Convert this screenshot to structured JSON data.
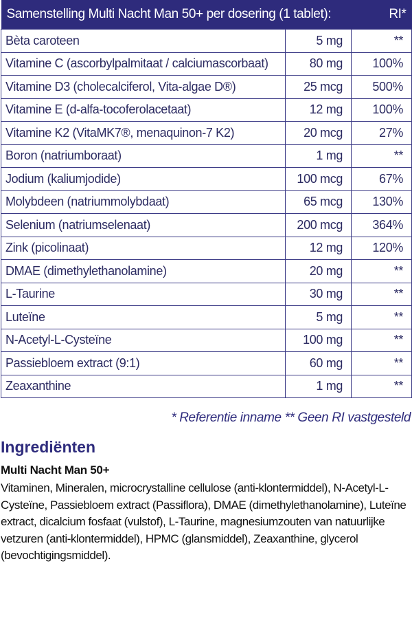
{
  "table": {
    "header": "Samenstelling Multi Nacht Man 50+ per dosering (1 tablet):",
    "ri_header": "RI*",
    "rows": [
      {
        "name": "Bèta caroteen",
        "amount": "5 mg",
        "ri": "**"
      },
      {
        "name": "Vitamine C (ascorbylpalmitaat / calciumascorbaat)",
        "amount": "80 mg",
        "ri": "100%"
      },
      {
        "name": "Vitamine D3 (cholecalciferol, Vita-algae D®)",
        "amount": "25 mcg",
        "ri": "500%"
      },
      {
        "name": "Vitamine E (d-alfa-tocoferolacetaat)",
        "amount": "12 mg",
        "ri": "100%"
      },
      {
        "name": "Vitamine K2 (VitaMK7®, menaquinon-7 K2)",
        "amount": "20 mcg",
        "ri": "27%"
      },
      {
        "name": "Boron (natriumboraat)",
        "amount": "1 mg",
        "ri": "**"
      },
      {
        "name": "Jodium (kaliumjodide)",
        "amount": "100 mcg",
        "ri": "67%"
      },
      {
        "name": "Molybdeen (natriummolybdaat)",
        "amount": "65 mcg",
        "ri": "130%"
      },
      {
        "name": "Selenium (natriumselenaat)",
        "amount": "200 mcg",
        "ri": "364%"
      },
      {
        "name": "Zink (picolinaat)",
        "amount": "12 mg",
        "ri": "120%"
      },
      {
        "name": "DMAE (dimethylethanolamine)",
        "amount": "20 mg",
        "ri": "**"
      },
      {
        "name": "L-Taurine",
        "amount": "30 mg",
        "ri": "**"
      },
      {
        "name": "Luteïne",
        "amount": "5 mg",
        "ri": "**"
      },
      {
        "name": "N-Acetyl-L-Cysteïne",
        "amount": "100 mg",
        "ri": "**"
      },
      {
        "name": "Passiebloem extract (9:1)",
        "amount": "60 mg",
        "ri": "**"
      },
      {
        "name": "Zeaxanthine",
        "amount": "1 mg",
        "ri": "**"
      }
    ]
  },
  "legend": "* Referentie inname  ** Geen RI vastgesteld",
  "ingredients": {
    "title": "Ingrediënten",
    "product": "Multi Nacht Man 50+",
    "text": "Vitaminen, Mineralen, microcrystalline cellulose (anti-klontermiddel), N-Acetyl-L-Cysteïne, Passiebloem extract (Passiflora), DMAE (dimethylethanolamine), Luteïne extract, dicalcium fosfaat (vulstof), L-Taurine, magnesiumzouten van natuurlijke vetzuren (anti-klontermiddel), HPMC (glansmiddel), Zeaxanthine, glycerol (bevochtigingsmiddel)."
  },
  "colors": {
    "header_bg": "#2e2b7c",
    "text": "#2c2b62"
  }
}
